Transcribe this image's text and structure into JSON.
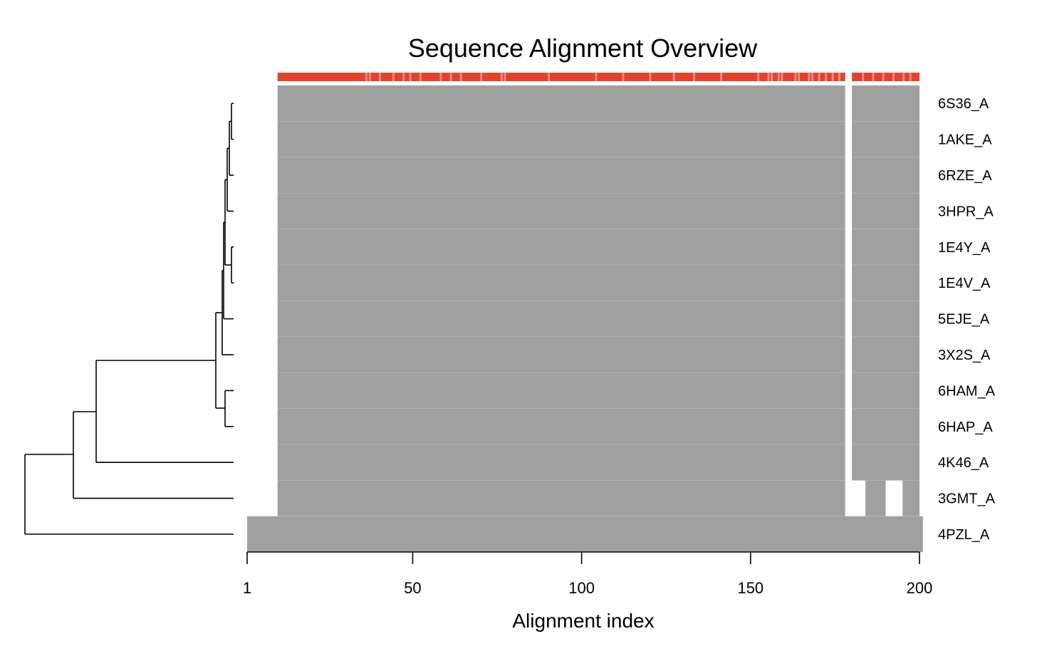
{
  "chart_data": {
    "type": "heatmap",
    "title": "Sequence Alignment Overview",
    "xlabel": "Alignment index",
    "ylabel": "",
    "xlim": [
      1,
      200
    ],
    "x_ticks": [
      1,
      50,
      100,
      150,
      200
    ],
    "grid": false,
    "rows": [
      {
        "label": "6S36_A",
        "segments": [
          [
            10,
            178
          ],
          [
            180,
            200
          ]
        ]
      },
      {
        "label": "1AKE_A",
        "segments": [
          [
            10,
            178
          ],
          [
            180,
            200
          ]
        ]
      },
      {
        "label": "6RZE_A",
        "segments": [
          [
            10,
            178
          ],
          [
            180,
            200
          ]
        ]
      },
      {
        "label": "3HPR_A",
        "segments": [
          [
            10,
            178
          ],
          [
            180,
            200
          ]
        ]
      },
      {
        "label": "1E4Y_A",
        "segments": [
          [
            10,
            178
          ],
          [
            180,
            200
          ]
        ]
      },
      {
        "label": "1E4V_A",
        "segments": [
          [
            10,
            178
          ],
          [
            180,
            200
          ]
        ]
      },
      {
        "label": "5EJE_A",
        "segments": [
          [
            10,
            178
          ],
          [
            180,
            200
          ]
        ]
      },
      {
        "label": "3X2S_A",
        "segments": [
          [
            10,
            178
          ],
          [
            180,
            200
          ]
        ]
      },
      {
        "label": "6HAM_A",
        "segments": [
          [
            10,
            178
          ],
          [
            180,
            200
          ]
        ]
      },
      {
        "label": "6HAP_A",
        "segments": [
          [
            10,
            178
          ],
          [
            180,
            200
          ]
        ]
      },
      {
        "label": "4K46_A",
        "segments": [
          [
            10,
            178
          ],
          [
            180,
            200
          ]
        ]
      },
      {
        "label": "3GMT_A",
        "segments": [
          [
            10,
            178
          ],
          [
            184,
            190
          ],
          [
            195,
            200
          ]
        ]
      },
      {
        "label": "4PZL_A",
        "segments": [
          [
            1,
            201
          ]
        ]
      }
    ],
    "conservation_bar": {
      "color": "#e5412d",
      "light_color": "#f08c80",
      "segments": [
        [
          10,
          178
        ],
        [
          180,
          200
        ]
      ],
      "light_positions": [
        36,
        37,
        40,
        44,
        47,
        49,
        52,
        58,
        61,
        64,
        70,
        76,
        77,
        90,
        104,
        112,
        120,
        127,
        133,
        141,
        152,
        155,
        156,
        158,
        159,
        163,
        164,
        167,
        168,
        170,
        172,
        174,
        176,
        183,
        186,
        189,
        192,
        195,
        197
      ]
    },
    "colors": {
      "aligned": "#a0a0a0",
      "row_separator": "#b8b8b8",
      "background": "#ffffff",
      "tree": "#000000"
    }
  }
}
